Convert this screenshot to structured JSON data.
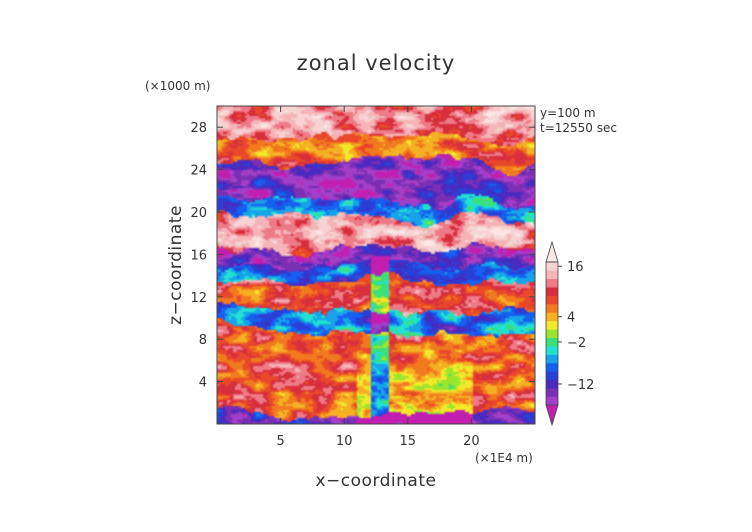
{
  "chart_data": {
    "type": "heatmap",
    "title": "zonal velocity",
    "xlabel": "x−coordinate",
    "ylabel": "z−coordinate",
    "x_unit": "(×1E4 m)",
    "y_unit": "(×1000 m)",
    "annotations": [
      "y=100 m",
      "t=12550 sec"
    ],
    "xlim": [
      0,
      25
    ],
    "ylim": [
      0,
      30
    ],
    "x_ticks": [
      5,
      10,
      15,
      20
    ],
    "y_ticks": [
      4,
      8,
      12,
      16,
      20,
      24,
      28
    ],
    "colorbar": {
      "levels": [
        -16,
        -14,
        -12,
        -10,
        -8,
        -6,
        -4,
        -2,
        0,
        2,
        4,
        6,
        8,
        10,
        12,
        14,
        16,
        18
      ],
      "colors": [
        "#c21fb0",
        "#a23ec8",
        "#7a2fb5",
        "#4b2ac0",
        "#2a3fd6",
        "#1660f0",
        "#17a3ea",
        "#22e1d2",
        "#3be07a",
        "#9ae62e",
        "#f1e92a",
        "#f6b024",
        "#f27a1e",
        "#e9482a",
        "#d72f3d",
        "#ee7a86",
        "#f5b5b8",
        "#f7d3d3",
        "#fbe6e6"
      ],
      "tick_labels": [
        "16",
        "4",
        "−2",
        "−12"
      ],
      "tick_values": [
        16,
        4,
        -2,
        -12
      ],
      "extend": "both"
    },
    "grid": false
  }
}
